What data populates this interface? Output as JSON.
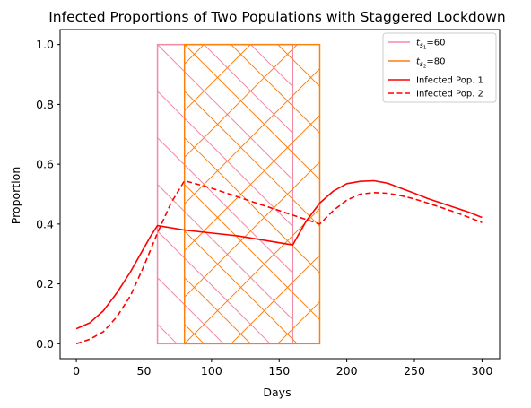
{
  "chart_data": {
    "type": "line",
    "title": "Infected Proportions of Two Populations with Staggered Lockdown",
    "xlabel": "Days",
    "ylabel": "Proportion",
    "xlim": [
      -12,
      313
    ],
    "ylim": [
      -0.05,
      1.05
    ],
    "xticks": [
      "0",
      "50",
      "100",
      "150",
      "200",
      "250",
      "300"
    ],
    "yticks": [
      "0.0",
      "0.2",
      "0.4",
      "0.6",
      "0.8",
      "1.0"
    ],
    "grid": false,
    "legend_position": "top-right",
    "lockdowns": [
      {
        "label_main": "t",
        "label_sub": "s",
        "label_subsub": "1",
        "label_suffix": "=60",
        "start": 60,
        "end": 160,
        "ymin": 0,
        "ymax": 1,
        "color": "#f28aa6",
        "hatch": "backslash"
      },
      {
        "label_main": "t",
        "label_sub": "s",
        "label_subsub": "2",
        "label_suffix": "=80",
        "start": 80,
        "end": 180,
        "ymin": 0,
        "ymax": 1,
        "color": "#ff7f0e",
        "hatch": "cross"
      }
    ],
    "series": [
      {
        "name": "Infected Pop. 1",
        "color": "#ff0000",
        "style": "solid",
        "x": [
          0,
          10,
          20,
          30,
          40,
          50,
          55,
          60,
          80,
          100,
          120,
          140,
          160,
          170,
          180,
          190,
          200,
          210,
          220,
          230,
          240,
          250,
          260,
          270,
          280,
          290,
          300
        ],
        "y": [
          0.05,
          0.07,
          0.11,
          0.17,
          0.24,
          0.32,
          0.36,
          0.395,
          0.38,
          0.37,
          0.36,
          0.345,
          0.33,
          0.41,
          0.47,
          0.51,
          0.535,
          0.543,
          0.545,
          0.537,
          0.52,
          0.503,
          0.485,
          0.47,
          0.455,
          0.44,
          0.422
        ]
      },
      {
        "name": "Infected Pop. 2",
        "color": "#ff0000",
        "style": "dashed",
        "x": [
          0,
          10,
          20,
          30,
          40,
          50,
          60,
          70,
          80,
          100,
          120,
          140,
          160,
          180,
          190,
          200,
          210,
          220,
          230,
          240,
          250,
          260,
          270,
          280,
          290,
          300
        ],
        "y": [
          0.0,
          0.015,
          0.04,
          0.09,
          0.16,
          0.26,
          0.37,
          0.47,
          0.545,
          0.52,
          0.49,
          0.46,
          0.43,
          0.4,
          0.445,
          0.48,
          0.5,
          0.505,
          0.503,
          0.495,
          0.484,
          0.47,
          0.455,
          0.44,
          0.423,
          0.405
        ]
      }
    ]
  }
}
